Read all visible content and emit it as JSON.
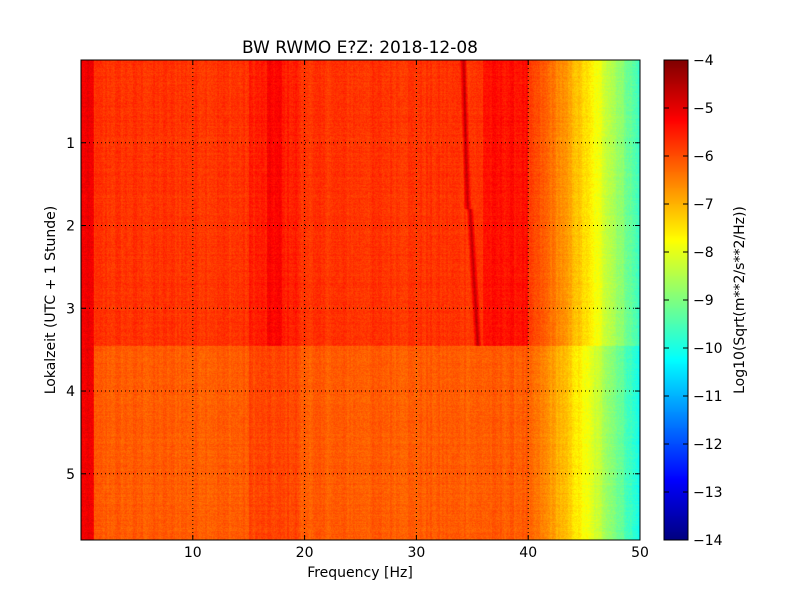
{
  "chart_data": {
    "type": "heatmap",
    "title": "BW RWMO E?Z: 2018-12-08",
    "xlabel": "Frequency [Hz]",
    "ylabel": "Lokalzeit (UTC + 1 Stunde)",
    "xlim": [
      0,
      50
    ],
    "ylim": [
      0,
      5.8
    ],
    "y_inverted": true,
    "x_ticks": [
      10,
      20,
      30,
      40,
      50
    ],
    "y_ticks": [
      1,
      2,
      3,
      4,
      5
    ],
    "grid": true,
    "colormap": "jet",
    "colorbar": {
      "label": "Log10(Sqrt(m**2/s**2/Hz))",
      "range": [
        -14,
        -4
      ],
      "ticks": [
        -4,
        -5,
        -6,
        -7,
        -8,
        -9,
        -10,
        -11,
        -12,
        -13,
        -14
      ]
    },
    "features": {
      "regime_change_time": 3.45,
      "tonal_lines": [
        {
          "from_time": 0,
          "to_time": 1.8,
          "from_freq": 34.2,
          "to_freq": 34.6
        },
        {
          "from_time": 1.8,
          "to_time": 3.45,
          "from_freq": 34.8,
          "to_freq": 35.5
        }
      ],
      "broad_peak_frequency": 17.3,
      "high_frequency_rolloff_start": 40,
      "level_range_below_40hz": [
        -6.5,
        -5
      ]
    }
  }
}
